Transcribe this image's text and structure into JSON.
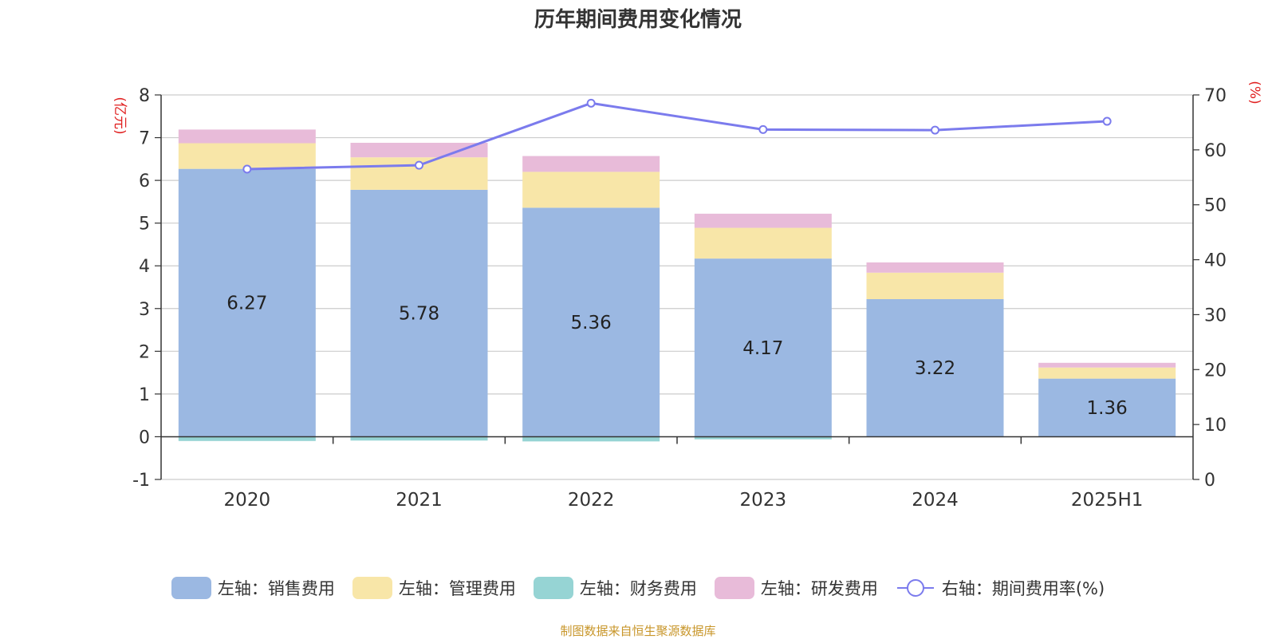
{
  "chart_data": {
    "type": "bar",
    "title": "历年期间费用变化情况",
    "categories": [
      "2020",
      "2021",
      "2022",
      "2023",
      "2024",
      "2025H1"
    ],
    "series": [
      {
        "name": "左轴：销售费用",
        "type": "bar",
        "axis": "left",
        "color": "#9bb8e2",
        "values": [
          6.27,
          5.78,
          5.36,
          4.17,
          3.22,
          1.36
        ],
        "labels": [
          "6.27",
          "5.78",
          "5.36",
          "4.17",
          "3.22",
          "1.36"
        ]
      },
      {
        "name": "左轴：管理费用",
        "type": "bar",
        "axis": "left",
        "color": "#f8e6a8",
        "values": [
          0.6,
          0.76,
          0.84,
          0.72,
          0.62,
          0.26
        ]
      },
      {
        "name": "左轴：财务费用",
        "type": "bar",
        "axis": "left",
        "color": "#96d4d4",
        "values": [
          -0.1,
          -0.09,
          -0.11,
          -0.06,
          -0.01,
          -0.01
        ]
      },
      {
        "name": "左轴：研发费用",
        "type": "bar",
        "axis": "left",
        "color": "#e8bbd9",
        "values": [
          0.32,
          0.34,
          0.37,
          0.33,
          0.24,
          0.11
        ]
      },
      {
        "name": "右轴：期间费用率(%)",
        "type": "line",
        "axis": "right",
        "color": "#7b7bed",
        "values": [
          56.5,
          57.2,
          68.5,
          63.7,
          63.6,
          65.2
        ]
      }
    ],
    "left_axis": {
      "label": "(亿元)",
      "min": -1,
      "max": 8,
      "ticks": [
        "8",
        "7",
        "6",
        "5",
        "4",
        "3",
        "2",
        "1",
        "0",
        "-1"
      ]
    },
    "right_axis": {
      "label": "(%)",
      "min": 0,
      "max": 70,
      "ticks": [
        "70",
        "60",
        "50",
        "40",
        "30",
        "20",
        "10",
        "0"
      ]
    },
    "grid": true,
    "legend_position": "bottom"
  },
  "source_note": "制图数据来自恒生聚源数据库"
}
